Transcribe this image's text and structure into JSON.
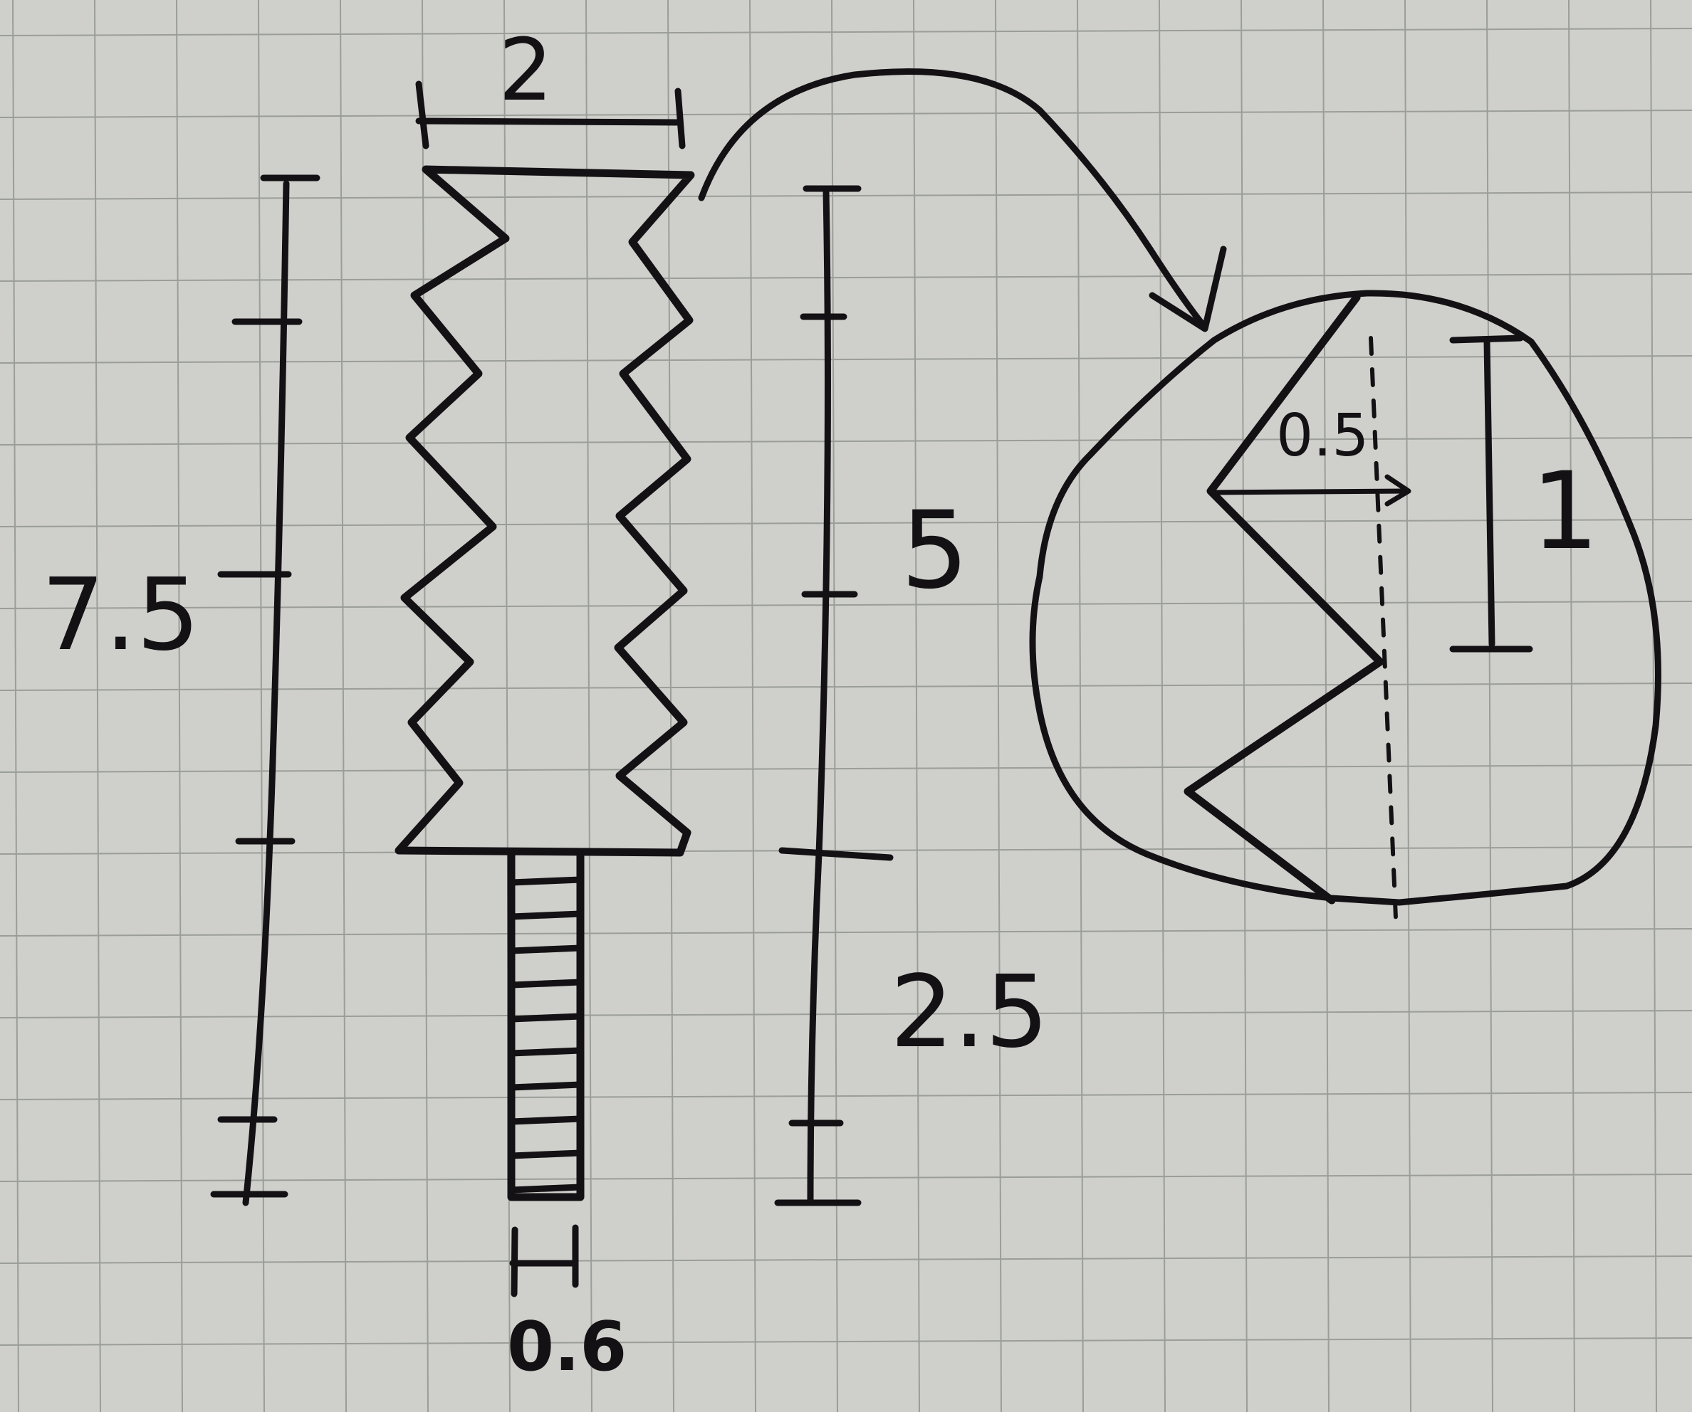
{
  "paper": {
    "background": "#cfd0cc",
    "grid_color": "#9a9d98",
    "ink_color": "#141114"
  },
  "labels": {
    "total_length": "7.5",
    "top_width": "2",
    "serrated_length": "5",
    "handle_length": "2.5",
    "handle_width": "0.6",
    "tooth_depth": "0.5",
    "tooth_height": "1"
  }
}
